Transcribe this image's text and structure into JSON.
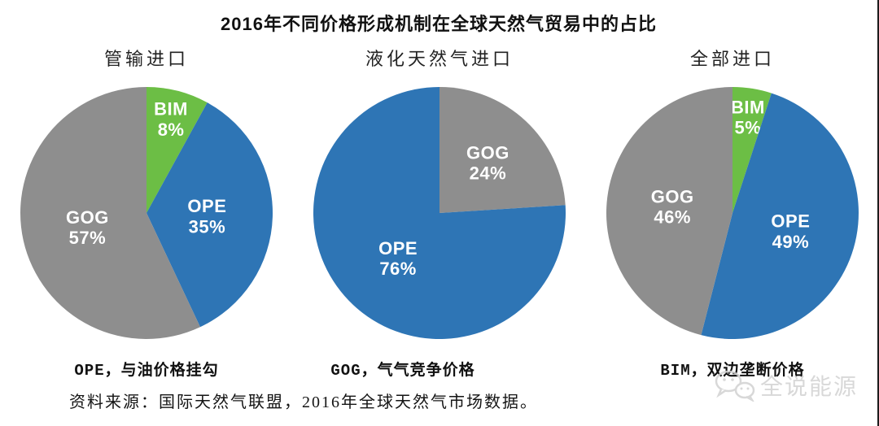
{
  "title": "2016年不同价格形成机制在全球天然气贸易中的占比",
  "source": "资料来源：国际天然气联盟，2016年全球天然气市场数据。",
  "watermark": {
    "icon": "wechat-icon",
    "text": "全说能源"
  },
  "colors": {
    "OPE": "#2e75b5",
    "GOG": "#8e8e8e",
    "BIM": "#6cbe45",
    "label_text": "#ffffff",
    "watermark_gray": "#d2d2d2"
  },
  "chart_data": [
    {
      "type": "pie",
      "title": "管输进口",
      "caption": "OPE，与油价格挂勾",
      "unit": "%",
      "start_angle_deg": 0,
      "direction": "clockwise",
      "label_format": "{label} {value}%",
      "slices": [
        {
          "label": "BIM",
          "value": 8,
          "color": "#6cbe45"
        },
        {
          "label": "OPE",
          "value": 35,
          "color": "#2e75b5"
        },
        {
          "label": "GOG",
          "value": 57,
          "color": "#8e8e8e"
        }
      ]
    },
    {
      "type": "pie",
      "title": "液化天然气进口",
      "caption": "GOG，气气竞争价格",
      "unit": "%",
      "start_angle_deg": 0,
      "direction": "clockwise",
      "label_format": "{label} {value}%",
      "slices": [
        {
          "label": "GOG",
          "value": 24,
          "color": "#8e8e8e"
        },
        {
          "label": "OPE",
          "value": 76,
          "color": "#2e75b5"
        }
      ]
    },
    {
      "type": "pie",
      "title": "全部进口",
      "caption": "BIM，双边垄断价格",
      "unit": "%",
      "start_angle_deg": 0,
      "direction": "clockwise",
      "label_format": "{label} {value}%",
      "slices": [
        {
          "label": "BIM",
          "value": 5,
          "color": "#6cbe45"
        },
        {
          "label": "OPE",
          "value": 49,
          "color": "#2e75b5"
        },
        {
          "label": "GOG",
          "value": 46,
          "color": "#8e8e8e"
        }
      ]
    }
  ]
}
